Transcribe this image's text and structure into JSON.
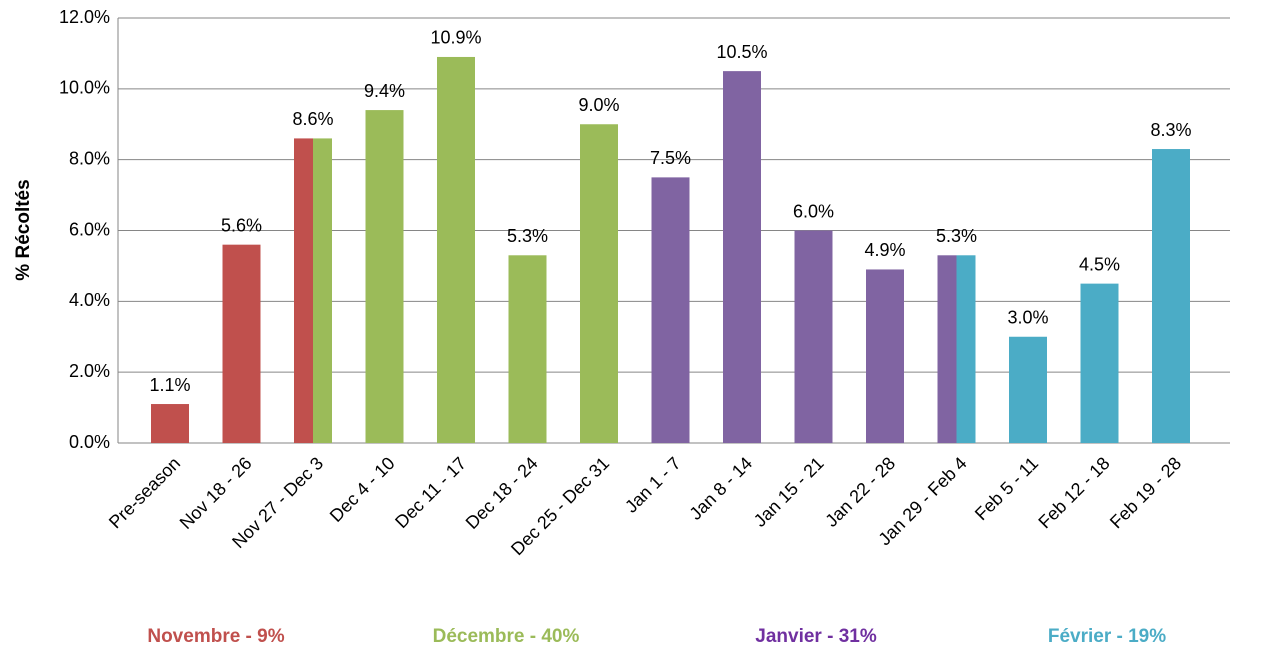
{
  "chart_data": {
    "type": "bar",
    "y_label": "% Récoltés",
    "categories": [
      "Pre-season",
      "Nov 18 - 26",
      "Nov 27 - Dec 3",
      "Dec 4 - 10",
      "Dec 11 - 17",
      "Dec 18 - 24",
      "Dec 25 - Dec 31",
      "Jan 1 - 7",
      "Jan 8 - 14",
      "Jan 15 - 21",
      "Jan 22 - 28",
      "Jan 29 - Feb 4",
      "Feb 5 - 11",
      "Feb 12 - 18",
      "Feb 19 - 28"
    ],
    "values": [
      1.1,
      5.6,
      8.6,
      9.4,
      10.9,
      5.3,
      9.0,
      7.5,
      10.5,
      6.0,
      4.9,
      5.3,
      3.0,
      4.5,
      8.3
    ],
    "value_labels": [
      "1.1%",
      "5.6%",
      "8.6%",
      "9.4%",
      "10.9%",
      "5.3%",
      "9.0%",
      "7.5%",
      "10.5%",
      "6.0%",
      "4.9%",
      "5.3%",
      "3.0%",
      "4.5%",
      "8.3%"
    ],
    "colors": [
      "#c0504d",
      "#c0504d",
      [
        "#c0504d",
        "#9bbb59"
      ],
      "#9bbb59",
      "#9bbb59",
      "#9bbb59",
      "#9bbb59",
      "#8064a2",
      "#8064a2",
      "#8064a2",
      "#8064a2",
      [
        "#8064a2",
        "#4bacc6"
      ],
      "#4bacc6",
      "#4bacc6",
      "#4bacc6"
    ],
    "ylim": [
      0,
      12
    ],
    "yticks": [
      {
        "value": 0,
        "label": "0.0%"
      },
      {
        "value": 2,
        "label": "2.0%"
      },
      {
        "value": 4,
        "label": "4.0%"
      },
      {
        "value": 6,
        "label": "6.0%"
      },
      {
        "value": 8,
        "label": "8.0%"
      },
      {
        "value": 10,
        "label": "10.0%"
      },
      {
        "value": 12,
        "label": "12.0%"
      }
    ],
    "grid": true,
    "month_labels": [
      {
        "text": "Novembre - 9%",
        "color": "#c0504d"
      },
      {
        "text": "Décembre - 40%",
        "color": "#9bbb59"
      },
      {
        "text": "Janvier - 31%",
        "color": "#7030a0"
      },
      {
        "text": "Février - 19%",
        "color": "#4bacc6"
      }
    ]
  }
}
